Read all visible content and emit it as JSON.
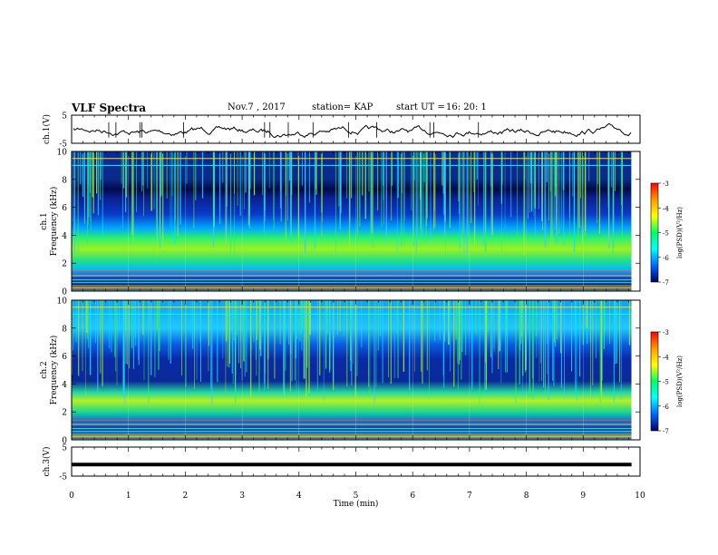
{
  "header": {
    "title": "VLF Spectra",
    "date": "Nov.7 , 2017",
    "station": "station= KAP",
    "start": "start UT =",
    "start_time": "16: 20: 1"
  },
  "xlabel": "Time (min)",
  "panels": [
    {
      "id": "ch1v",
      "ylabel": "ch.1(V)",
      "ticks": [
        "5",
        "-5"
      ]
    },
    {
      "id": "ch1",
      "ylabel_line1": "ch.1",
      "ylabel_line2": "Frequency (kHz)",
      "ticks": [
        "10",
        "8",
        "6",
        "4",
        "2",
        "0"
      ]
    },
    {
      "id": "ch2",
      "ylabel_line1": "ch.2",
      "ylabel_line2": "Frequency (kHz)",
      "ticks": [
        "10",
        "8",
        "6",
        "4",
        "2",
        "0"
      ]
    },
    {
      "id": "ch3v",
      "ylabel": "ch.3(V)",
      "ticks": [
        "5",
        "-5"
      ]
    }
  ],
  "colorbar": {
    "label": "log(PSD)(V²/Hz)",
    "ticks": [
      "-3",
      "-4",
      "-5",
      "-6",
      "-7"
    ],
    "colors": [
      "#ff0000",
      "#ff9900",
      "#ffff00",
      "#00ff66",
      "#00ffff",
      "#0066ff",
      "#000066"
    ]
  },
  "chart_data": {
    "type": "heatmap",
    "x_range": [
      0,
      10
    ],
    "x_ticks": [
      0,
      1,
      2,
      3,
      4,
      5,
      6,
      7,
      8,
      9,
      10
    ],
    "data_end_min": 9.85,
    "ch1_freq_range_khz": [
      0,
      10
    ],
    "ch2_freq_range_khz": [
      0,
      10
    ],
    "voltage_range_v": [
      -5,
      5
    ],
    "colorbar_range_log_psd": [
      -7,
      -3
    ],
    "ch3_constant_level_v": -1
  }
}
